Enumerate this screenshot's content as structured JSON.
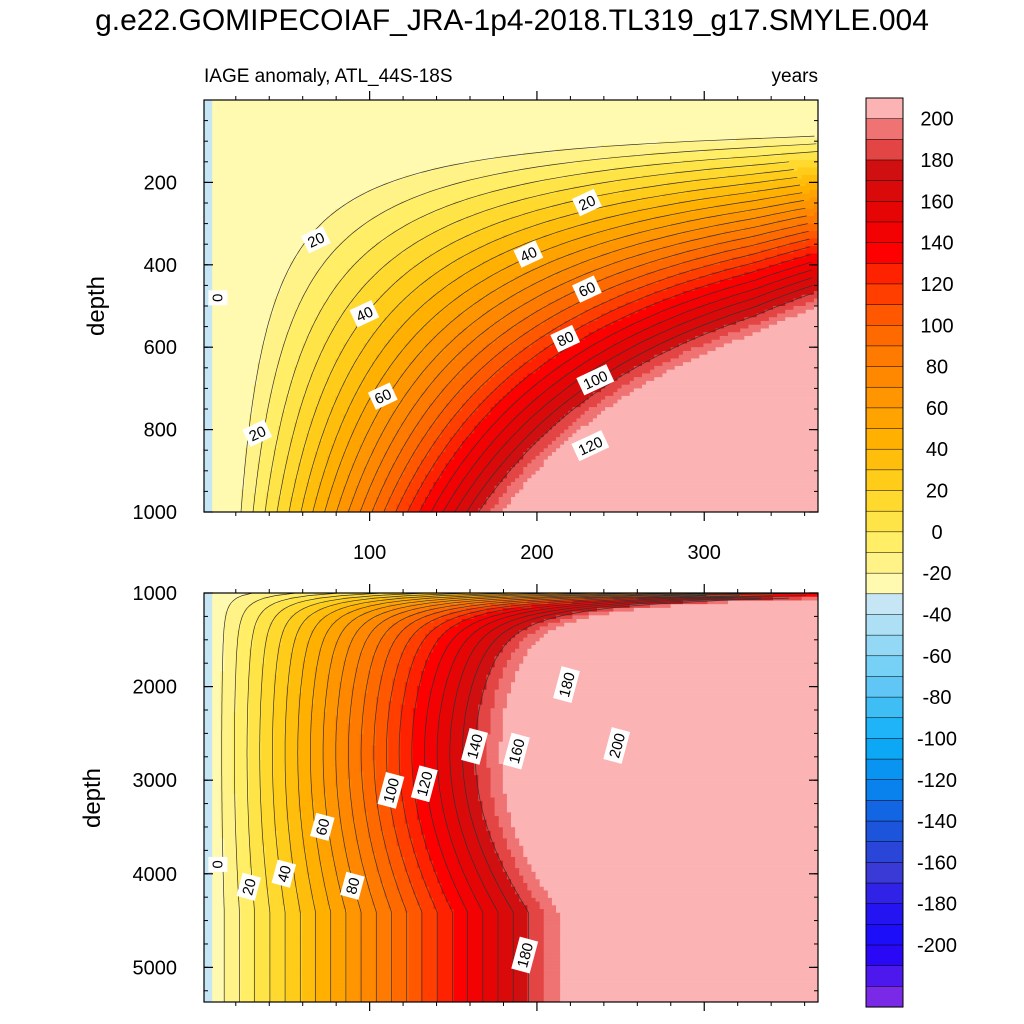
{
  "page": {
    "title": "g.e22.GOMIPECOIAF_JRA-1p4-2018.TL319_g17.SMYLE.004"
  },
  "chart_data": [
    {
      "type": "heatmap",
      "panel": "upper",
      "title": "IAGE anomaly, ATL_44S-18S",
      "units": "years",
      "xlabel": "",
      "ylabel": "depth",
      "xlim": [
        1,
        368
      ],
      "ylim": [
        1000,
        0
      ],
      "xticks": [
        100,
        200,
        300
      ],
      "xtick_labels": [
        "100",
        "200",
        "300"
      ],
      "yticks": [
        200,
        400,
        600,
        800,
        1000
      ],
      "ytick_labels": [
        "200",
        "400",
        "600",
        "800",
        "1000"
      ],
      "contour_interval": 10,
      "contour_labels": [
        {
          "text": "0",
          "x": 9,
          "y": 480
        },
        {
          "text": "20",
          "x": 33,
          "y": 810
        },
        {
          "text": "20",
          "x": 68,
          "y": 340
        },
        {
          "text": "20",
          "x": 230,
          "y": 250
        },
        {
          "text": "40",
          "x": 97,
          "y": 520
        },
        {
          "text": "40",
          "x": 195,
          "y": 375
        },
        {
          "text": "60",
          "x": 108,
          "y": 720
        },
        {
          "text": "60",
          "x": 230,
          "y": 460
        },
        {
          "text": "80",
          "x": 217,
          "y": 580
        },
        {
          "text": "100",
          "x": 235,
          "y": 680
        },
        {
          "text": "120",
          "x": 232,
          "y": 840
        }
      ]
    },
    {
      "type": "heatmap",
      "panel": "lower",
      "title": "",
      "xlabel": "",
      "ylabel": "depth",
      "xlim": [
        1,
        368
      ],
      "ylim": [
        5370,
        1000
      ],
      "xticks": [
        100,
        200,
        300
      ],
      "yticks": [
        1000,
        2000,
        3000,
        4000,
        5000
      ],
      "ytick_labels": [
        "1000",
        "2000",
        "3000",
        "4000",
        "5000"
      ],
      "contour_interval": 10,
      "contour_labels": [
        {
          "text": "0",
          "x": 9,
          "y": 3900
        },
        {
          "text": "20",
          "x": 28,
          "y": 4140
        },
        {
          "text": "40",
          "x": 49,
          "y": 4000
        },
        {
          "text": "60",
          "x": 72,
          "y": 3500
        },
        {
          "text": "80",
          "x": 90,
          "y": 4130
        },
        {
          "text": "100",
          "x": 113,
          "y": 3110
        },
        {
          "text": "120",
          "x": 133,
          "y": 3040
        },
        {
          "text": "140",
          "x": 163,
          "y": 2640
        },
        {
          "text": "160",
          "x": 188,
          "y": 2690
        },
        {
          "text": "180",
          "x": 218,
          "y": 1980
        },
        {
          "text": "200",
          "x": 248,
          "y": 2630
        },
        {
          "text": "180",
          "x": 193,
          "y": 4870
        }
      ]
    }
  ],
  "colorbar": {
    "levels": [
      "200",
      "180",
      "160",
      "140",
      "120",
      "100",
      "80",
      "60",
      "40",
      "20",
      "0",
      "-20",
      "-40",
      "-60",
      "-80",
      "-100",
      "-120",
      "-140",
      "-160",
      "-180",
      "-200"
    ],
    "colors_top_to_bottom": [
      "#fbb3b3",
      "#ef7373",
      "#e34545",
      "#d01010",
      "#da0a0a",
      "#e60505",
      "#f20202",
      "#ff0000",
      "#ff2200",
      "#ff3e00",
      "#ff5800",
      "#ff6a00",
      "#ff7a00",
      "#ff8800",
      "#ff9500",
      "#ffa300",
      "#ffb000",
      "#ffbe0c",
      "#ffcc1a",
      "#ffd92e",
      "#ffe448",
      "#ffee66",
      "#fff287",
      "#fffab0",
      "#c6e6f6",
      "#ade0f4",
      "#93d8f4",
      "#77d0f6",
      "#5fc6f6",
      "#3fbef6",
      "#1fb4f7",
      "#0ca8f6",
      "#0a94f2",
      "#0a82ee",
      "#1266e3",
      "#1d54dc",
      "#2a46d8",
      "#3a3ad6",
      "#3022e6",
      "#2414f2",
      "#1c0ef8",
      "#2a08f6",
      "#4c18ee",
      "#7a2ae6"
    ]
  }
}
